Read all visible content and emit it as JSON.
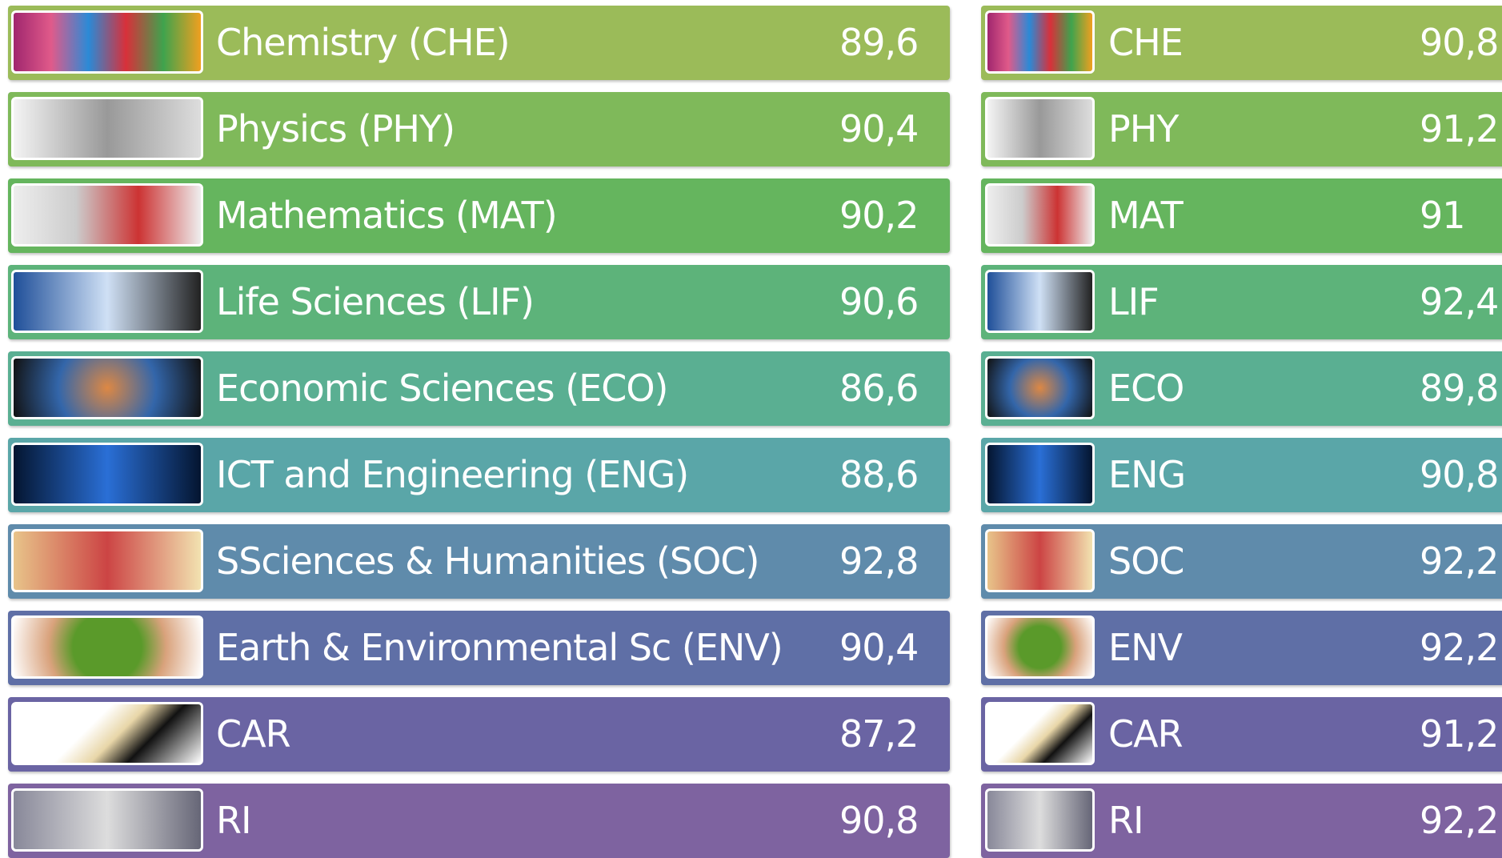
{
  "left": {
    "rows": [
      {
        "label": "Chemistry (CHE)",
        "score": "89,6"
      },
      {
        "label": "Physics (PHY)",
        "score": "90,4"
      },
      {
        "label": "Mathematics (MAT)",
        "score": "90,2"
      },
      {
        "label": "Life Sciences (LIF)",
        "score": "90,6"
      },
      {
        "label": "Economic Sciences (ECO)",
        "score": "86,6"
      },
      {
        "label": "ICT and Engineering (ENG)",
        "score": "88,6"
      },
      {
        "label": "SSciences & Humanities (SOC)",
        "score": "92,8"
      },
      {
        "label": "Earth & Environmental Sc (ENV)",
        "score": "90,4"
      },
      {
        "label": "CAR",
        "score": "87,2"
      },
      {
        "label": "RI",
        "score": "90,8"
      }
    ]
  },
  "right": {
    "rows": [
      {
        "label": "CHE",
        "score": "90,8"
      },
      {
        "label": "PHY",
        "score": "91,2"
      },
      {
        "label": "MAT",
        "score": "91"
      },
      {
        "label": "LIF",
        "score": "92,4"
      },
      {
        "label": "ECO",
        "score": "89,8"
      },
      {
        "label": "ENG",
        "score": "90,8"
      },
      {
        "label": "SOC",
        "score": "92,2"
      },
      {
        "label": "ENV",
        "score": "92,2"
      },
      {
        "label": "CAR",
        "score": "91,2"
      },
      {
        "label": "RI",
        "score": "92,2"
      }
    ]
  }
}
